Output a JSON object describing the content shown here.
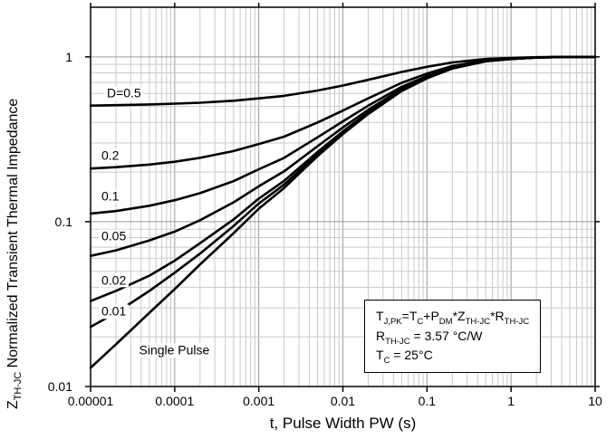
{
  "chart_data": {
    "type": "line",
    "title": "",
    "xlabel": "t, Pulse Width PW (s)",
    "ylabel_rich": "Z_{TH-JC} Normalized Transient Thermal Impedance",
    "xscale": "log",
    "yscale": "log",
    "xlim": [
      1e-05,
      10
    ],
    "ylim": [
      0.01,
      2
    ],
    "grid": true,
    "legend": "curve-labels-inline",
    "x": [
      1e-05,
      2e-05,
      5e-05,
      0.0001,
      0.0002,
      0.0005,
      0.001,
      0.002,
      0.005,
      0.01,
      0.02,
      0.05,
      0.1,
      0.2,
      0.5,
      1,
      2,
      5,
      10
    ],
    "series": [
      {
        "name": "D=0.5",
        "values": [
          0.506,
          0.509,
          0.514,
          0.52,
          0.527,
          0.542,
          0.56,
          0.58,
          0.625,
          0.67,
          0.725,
          0.81,
          0.87,
          0.925,
          0.97,
          0.985,
          0.995,
          1.0,
          1.0
        ]
      },
      {
        "name": "D=0.2",
        "values": [
          0.21,
          0.214,
          0.222,
          0.231,
          0.244,
          0.268,
          0.296,
          0.328,
          0.4,
          0.472,
          0.56,
          0.696,
          0.792,
          0.88,
          0.952,
          0.976,
          0.992,
          1.0,
          1.0
        ]
      },
      {
        "name": "D=0.1",
        "values": [
          0.112,
          0.116,
          0.125,
          0.135,
          0.149,
          0.176,
          0.208,
          0.244,
          0.325,
          0.406,
          0.505,
          0.658,
          0.766,
          0.865,
          0.946,
          0.973,
          0.991,
          1.0,
          1.0
        ]
      },
      {
        "name": "D=0.05",
        "values": [
          0.062,
          0.067,
          0.077,
          0.087,
          0.102,
          0.131,
          0.164,
          0.202,
          0.287,
          0.373,
          0.477,
          0.639,
          0.753,
          0.857,
          0.943,
          0.971,
          0.99,
          1.0,
          1.0
        ]
      },
      {
        "name": "D=0.02",
        "values": [
          0.033,
          0.038,
          0.047,
          0.058,
          0.074,
          0.103,
          0.138,
          0.177,
          0.265,
          0.353,
          0.461,
          0.628,
          0.745,
          0.853,
          0.941,
          0.971,
          0.99,
          1.0,
          1.0
        ]
      },
      {
        "name": "D=0.01",
        "values": [
          0.023,
          0.028,
          0.038,
          0.049,
          0.064,
          0.094,
          0.129,
          0.168,
          0.257,
          0.347,
          0.456,
          0.624,
          0.743,
          0.851,
          0.941,
          0.97,
          0.99,
          1.0,
          1.0
        ]
      },
      {
        "name": "Single Pulse",
        "values": [
          0.013,
          0.018,
          0.028,
          0.039,
          0.055,
          0.085,
          0.12,
          0.16,
          0.25,
          0.34,
          0.45,
          0.62,
          0.74,
          0.85,
          0.94,
          0.97,
          0.99,
          1.0,
          1.0
        ]
      }
    ],
    "xticks": [
      {
        "v": 1e-05,
        "label": "0.00001"
      },
      {
        "v": 0.0001,
        "label": "0.0001"
      },
      {
        "v": 0.001,
        "label": "0.001"
      },
      {
        "v": 0.01,
        "label": "0.01"
      },
      {
        "v": 0.1,
        "label": "0.1"
      },
      {
        "v": 1,
        "label": "1"
      },
      {
        "v": 10,
        "label": "10"
      }
    ],
    "yticks": [
      {
        "v": 0.01,
        "label": "0.01"
      },
      {
        "v": 0.1,
        "label": "0.1"
      },
      {
        "v": 1,
        "label": "1"
      }
    ],
    "curve_labels": [
      {
        "text": "D=0.5",
        "x": 1.45e-05,
        "y": 0.6
      },
      {
        "text": "0.2",
        "x": 1.25e-05,
        "y": 0.25
      },
      {
        "text": "0.1",
        "x": 1.25e-05,
        "y": 0.142
      },
      {
        "text": "0.05",
        "x": 1.25e-05,
        "y": 0.082
      },
      {
        "text": "0.02",
        "x": 1.25e-05,
        "y": 0.044
      },
      {
        "text": "0.01",
        "x": 1.25e-05,
        "y": 0.0285
      },
      {
        "text": "Single Pulse",
        "x": 3.5e-05,
        "y": 0.0165
      }
    ]
  },
  "annotation": {
    "lines": [
      "T_{J,PK}=T_{C}+P_{DM}*Z_{TH-JC}*R_{TH-JC}",
      "R_{TH-JC} = 3.57 °C/W",
      "T_{C} = 25°C"
    ]
  },
  "colors": {
    "curve": "#000000",
    "grid_minor": "#c9c9c9",
    "grid_major": "#9a9a9a",
    "axis": "#000000",
    "background": "#ffffff"
  }
}
